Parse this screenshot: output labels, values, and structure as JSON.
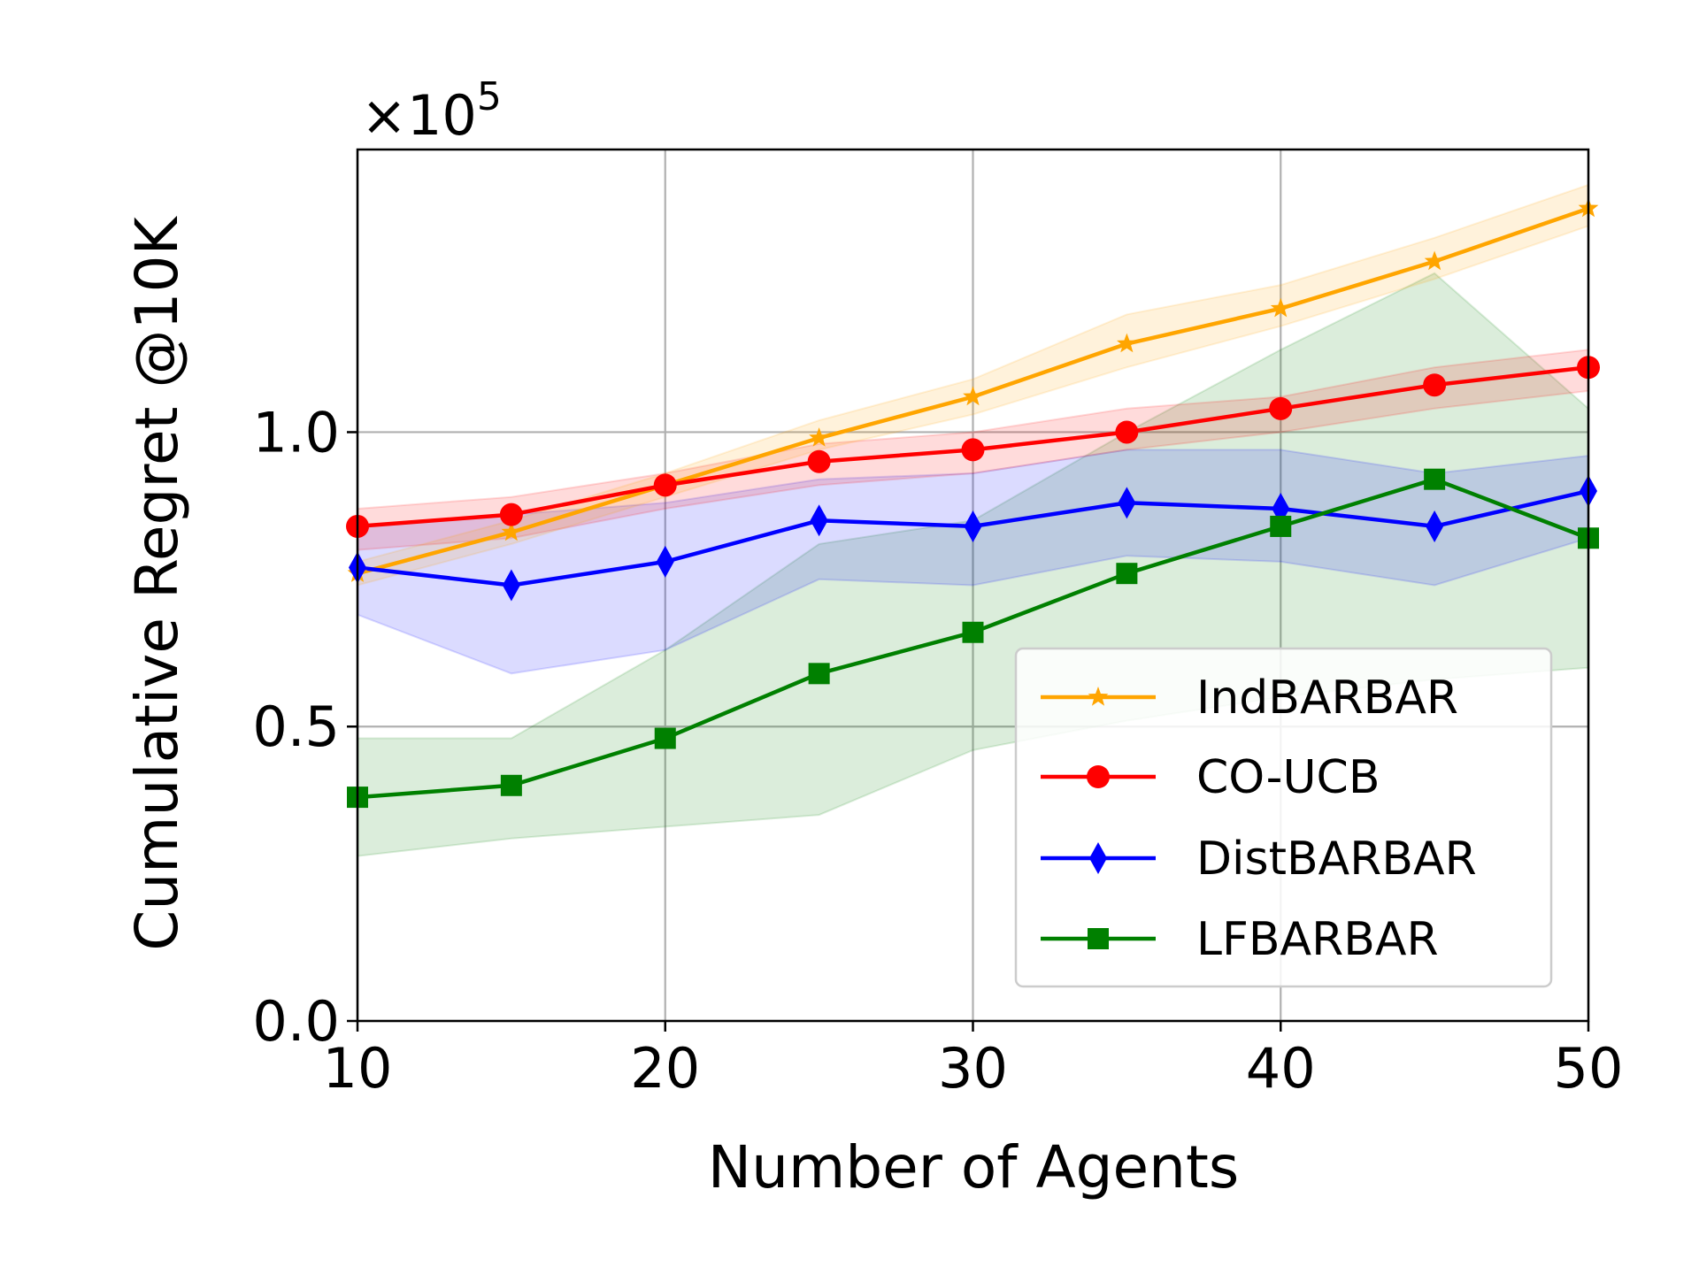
{
  "chart_data": {
    "type": "line",
    "xlabel": "Number of Agents",
    "ylabel": "Cumulative Regret @10K",
    "y_multiplier": "×10",
    "y_multiplier_exp": "5",
    "xlim": [
      10,
      50
    ],
    "ylim": [
      0,
      1.48
    ],
    "xticks": [
      10,
      20,
      30,
      40,
      50
    ],
    "xtick_labels": [
      "10",
      "20",
      "30",
      "40",
      "50"
    ],
    "yticks": [
      0,
      0.5,
      1.0
    ],
    "ytick_labels": [
      "0.0",
      "0.5",
      "1.0"
    ],
    "grid": true,
    "legend_position": "lower-right",
    "x": [
      10,
      15,
      20,
      25,
      30,
      35,
      40,
      45,
      50
    ],
    "series": [
      {
        "name": "IndBARBAR",
        "color": "#FFA500",
        "marker": "star",
        "values": [
          0.76,
          0.83,
          0.91,
          0.99,
          1.06,
          1.15,
          1.21,
          1.29,
          1.38
        ],
        "lower": [
          0.74,
          0.81,
          0.89,
          0.97,
          1.03,
          1.11,
          1.18,
          1.26,
          1.35
        ],
        "upper": [
          0.78,
          0.85,
          0.93,
          1.02,
          1.09,
          1.2,
          1.25,
          1.33,
          1.42
        ]
      },
      {
        "name": "CO-UCB",
        "color": "#FF0000",
        "marker": "circle",
        "values": [
          0.84,
          0.86,
          0.91,
          0.95,
          0.97,
          1.0,
          1.04,
          1.08,
          1.11
        ],
        "lower": [
          0.8,
          0.82,
          0.87,
          0.91,
          0.93,
          0.97,
          1.0,
          1.04,
          1.07
        ],
        "upper": [
          0.87,
          0.89,
          0.93,
          0.98,
          1.0,
          1.04,
          1.06,
          1.11,
          1.14
        ]
      },
      {
        "name": "DistBARBAR",
        "color": "#0000FF",
        "marker": "diamond",
        "values": [
          0.77,
          0.74,
          0.78,
          0.85,
          0.84,
          0.88,
          0.87,
          0.84,
          0.9
        ],
        "lower": [
          0.69,
          0.59,
          0.63,
          0.75,
          0.74,
          0.79,
          0.78,
          0.74,
          0.82
        ],
        "upper": [
          0.84,
          0.86,
          0.88,
          0.92,
          0.93,
          0.97,
          0.97,
          0.93,
          0.96
        ]
      },
      {
        "name": "LFBARBAR",
        "color": "#008000",
        "marker": "square",
        "values": [
          0.38,
          0.4,
          0.48,
          0.59,
          0.66,
          0.76,
          0.84,
          0.92,
          0.82
        ],
        "lower": [
          0.28,
          0.31,
          0.33,
          0.35,
          0.46,
          0.51,
          0.55,
          0.58,
          0.6
        ],
        "upper": [
          0.48,
          0.48,
          0.63,
          0.81,
          0.85,
          1.0,
          1.14,
          1.27,
          1.04
        ]
      }
    ]
  }
}
